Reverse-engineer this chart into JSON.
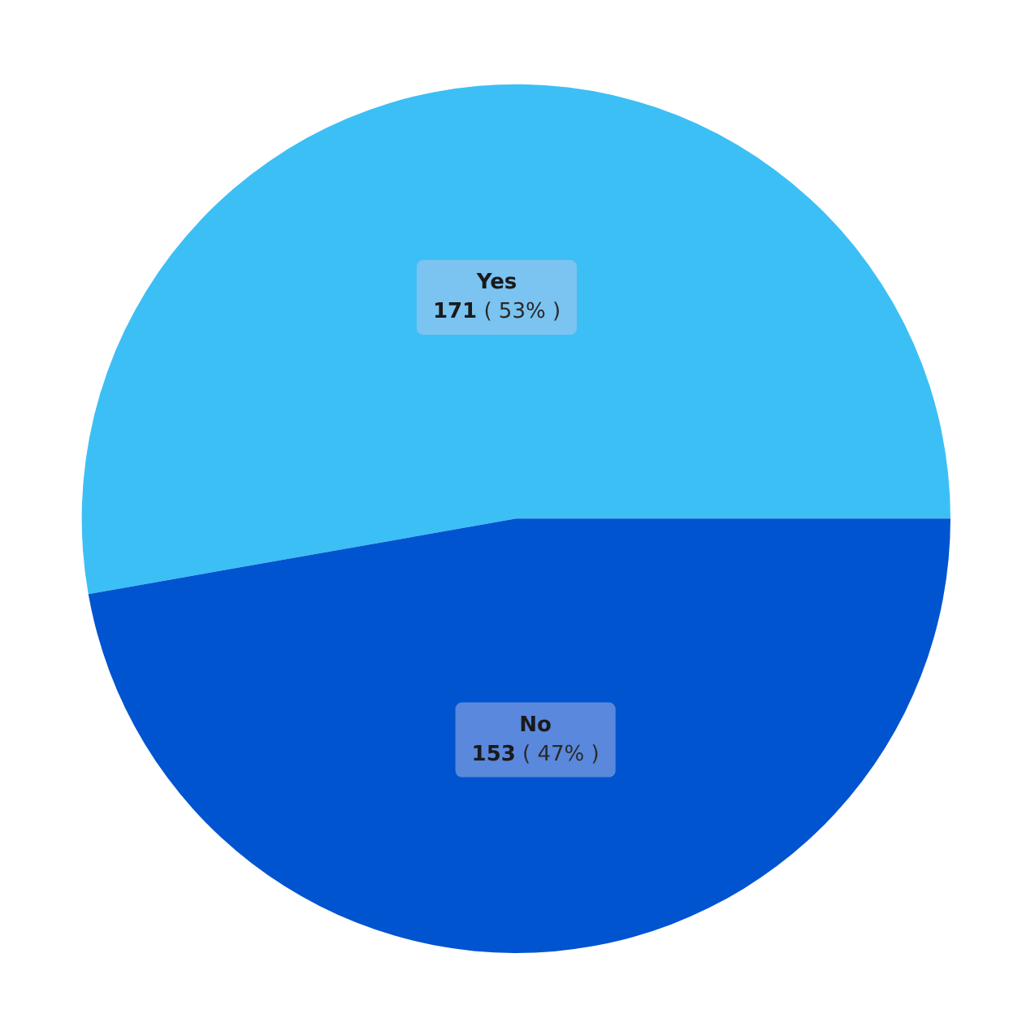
{
  "chart_data": {
    "type": "pie",
    "categories": [
      "Yes",
      "No"
    ],
    "values": [
      171,
      153
    ],
    "colors": [
      "#3cbff5",
      "#0054d0"
    ],
    "value_labels": [
      "171 ( 53% )",
      "153 ( 47% )"
    ]
  }
}
